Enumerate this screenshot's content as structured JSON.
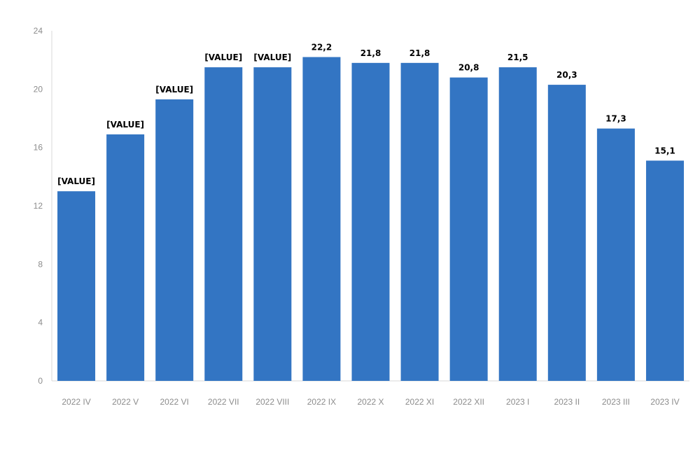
{
  "chart_data": {
    "type": "bar",
    "categories": [
      "2022 IV",
      "2022 V",
      "2022 VI",
      "2022 VII",
      "2022 VIII",
      "2022 IX",
      "2022 X",
      "2022 XI",
      "2022 XII",
      "2023 I",
      "2023 II",
      "2023 III",
      "2023 IV"
    ],
    "values": [
      13.0,
      16.9,
      19.3,
      21.5,
      21.5,
      22.2,
      21.8,
      21.8,
      20.8,
      21.5,
      20.3,
      17.3,
      15.1
    ],
    "data_labels": [
      "[VALUE]",
      "[VALUE]",
      "[VALUE]",
      "[VALUE]",
      "[VALUE]",
      "22,2",
      "21,8",
      "21,8",
      "20,8",
      "21,5",
      "20,3",
      "17,3",
      "15,1"
    ],
    "y_ticks": [
      "0",
      "4",
      "8",
      "12",
      "16",
      "20",
      "24"
    ],
    "title": "",
    "xlabel": "",
    "ylabel": "",
    "ylim": [
      0,
      24
    ],
    "grid": false,
    "legend": "none",
    "bar_color": "#3375c3"
  }
}
